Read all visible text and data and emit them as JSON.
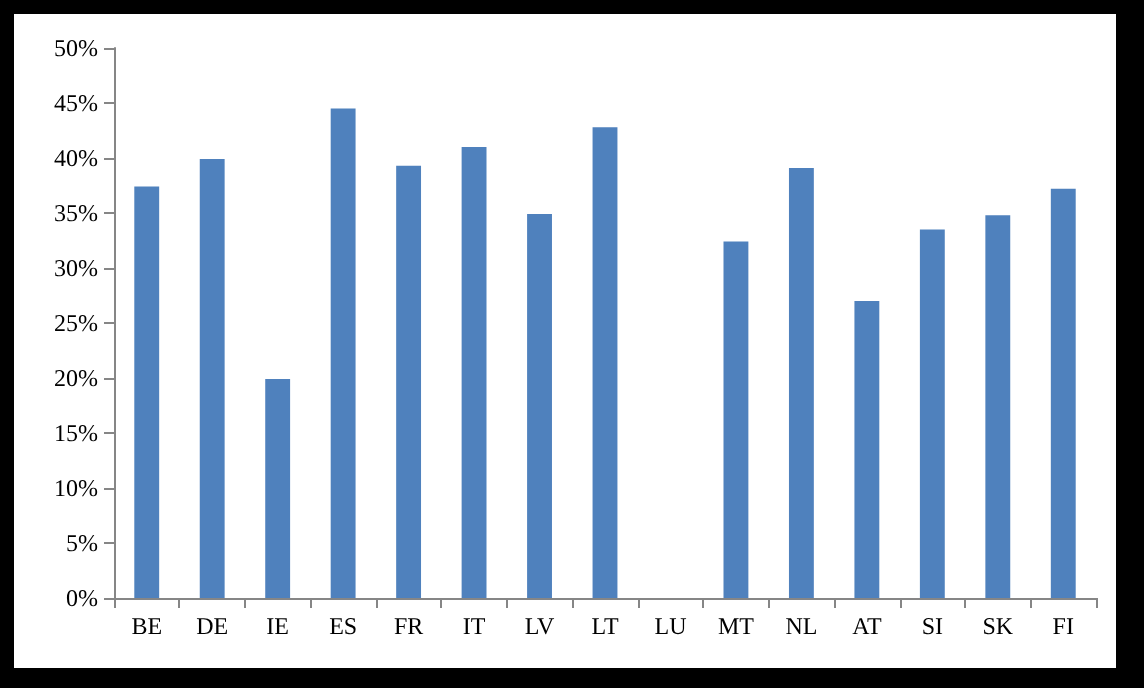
{
  "chart_data": {
    "type": "bar",
    "categories": [
      "BE",
      "DE",
      "IE",
      "ES",
      "FR",
      "IT",
      "LV",
      "LT",
      "LU",
      "MT",
      "NL",
      "AT",
      "SI",
      "SK",
      "FI"
    ],
    "values": [
      37.4,
      39.9,
      19.9,
      44.5,
      39.3,
      41.0,
      34.9,
      42.8,
      null,
      32.4,
      39.1,
      27.0,
      33.5,
      34.8,
      37.2
    ],
    "color": "#4f81bd",
    "ylim": [
      0,
      50
    ],
    "yticks": [
      {
        "value": 0,
        "label": "0%"
      },
      {
        "value": 5,
        "label": "5%"
      },
      {
        "value": 10,
        "label": "10%"
      },
      {
        "value": 15,
        "label": "15%"
      },
      {
        "value": 20,
        "label": "20%"
      },
      {
        "value": 25,
        "label": "25%"
      },
      {
        "value": 30,
        "label": "30%"
      },
      {
        "value": 35,
        "label": "35%"
      },
      {
        "value": 40,
        "label": "40%"
      },
      {
        "value": 45,
        "label": "45%"
      },
      {
        "value": 50,
        "label": "50%"
      }
    ],
    "grid": false
  }
}
